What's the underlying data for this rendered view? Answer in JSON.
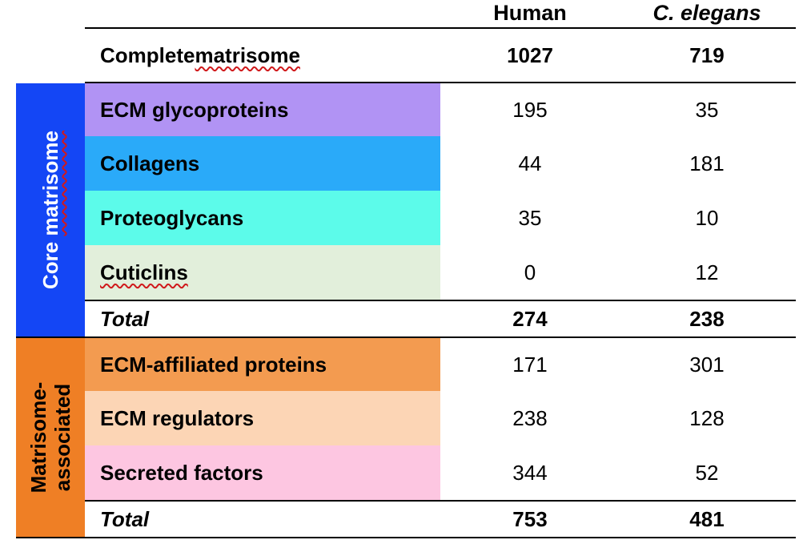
{
  "chart_data": {
    "type": "table",
    "columns": [
      "Human",
      "C. elegans"
    ],
    "complete": {
      "label_prefix": "Complete ",
      "label_suffix": "matrisome",
      "human": "1027",
      "celegans": "719"
    },
    "groups": [
      {
        "name_line1": "Core ",
        "name_line1b": "matrisome",
        "name_line2": "",
        "color": "#1446f5",
        "rows": [
          {
            "label": "ECM glycoproteins",
            "color": "#b193f4",
            "human": "195",
            "celegans": "35"
          },
          {
            "label": "Collagens",
            "color": "#2aaaf9",
            "human": "44",
            "celegans": "181"
          },
          {
            "label": "Proteoglycans",
            "color": "#5cfbea",
            "human": "35",
            "celegans": "10"
          },
          {
            "label": "Cuticlins",
            "color": "#e2efdb",
            "human": "0",
            "celegans": "12"
          }
        ],
        "total": {
          "label": "Total",
          "human": "274",
          "celegans": "238"
        }
      },
      {
        "name_line1": "Matrisome-",
        "name_line1b": "",
        "name_line2": "associated",
        "color": "#ef7f25",
        "rows": [
          {
            "label": "ECM-affiliated proteins",
            "color": "#f39b50",
            "human": "171",
            "celegans": "301"
          },
          {
            "label": "ECM regulators",
            "color": "#fcd5b5",
            "human": "238",
            "celegans": "128"
          },
          {
            "label": "Secreted factors",
            "color": "#fdc6e1",
            "human": "344",
            "celegans": "52"
          }
        ],
        "total": {
          "label": "Total",
          "human": "753",
          "celegans": "481"
        }
      }
    ]
  }
}
